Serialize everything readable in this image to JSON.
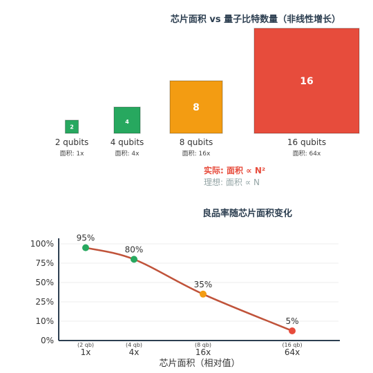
{
  "chart_data": [
    {
      "type": "bar",
      "title": "芯片面积 vs 量子比特数量（非线性增长）",
      "categories": [
        "2 qubits",
        "4 qubits",
        "8 qubits",
        "16 qubits"
      ],
      "series": [
        {
          "values": [
            2,
            4,
            8,
            16
          ]
        }
      ],
      "area_labels": [
        "面积: 1x",
        "面积: 4x",
        "面积: 16x",
        "面积: 64x"
      ],
      "area_multipliers": [
        1,
        4,
        16,
        64
      ],
      "colors": [
        "#27a85f",
        "#27a85f",
        "#f39c12",
        "#e74c3c"
      ],
      "legend": {
        "actual": "实际: 面积 ∝ N²",
        "ideal": "理想: 面积 ∝ N"
      }
    },
    {
      "type": "line",
      "title": "良品率随芯片面积变化",
      "xlabel": "芯片面积（相对值）",
      "x": [
        "1x",
        "4x",
        "16x",
        "64x"
      ],
      "x_sublabels": [
        "(2 qb)",
        "(4 qb)",
        "(8 qb)",
        "(16 qb)"
      ],
      "y_ticks": [
        "0%",
        "10%",
        "25%",
        "50%",
        "75%",
        "100%"
      ],
      "ylim": [
        0,
        100
      ],
      "series": [
        {
          "values": [
            95,
            80,
            35,
            5
          ]
        }
      ],
      "data_labels": [
        "95%",
        "80%",
        "35%",
        "5%"
      ],
      "point_colors": [
        "#27a85f",
        "#27a85f",
        "#f39c12",
        "#e74c3c"
      ],
      "line_color": "#c0533a",
      "grid": true
    }
  ]
}
